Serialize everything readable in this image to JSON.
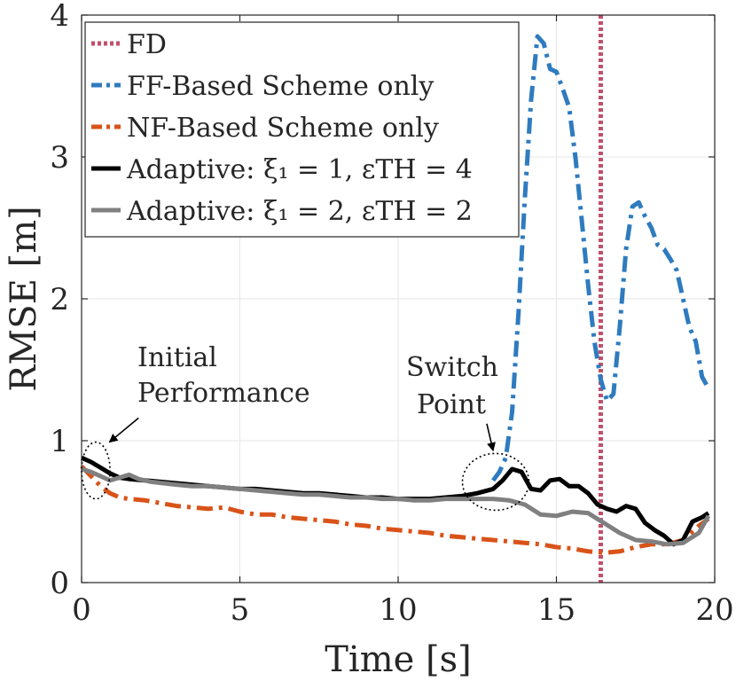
{
  "chart_data": {
    "type": "line",
    "xlabel": "Time [s]",
    "ylabel": "RMSE [m]",
    "xlim": [
      0,
      20
    ],
    "ylim": [
      0,
      4
    ],
    "xticks": [
      0,
      5,
      10,
      15,
      20
    ],
    "yticks": [
      0,
      1,
      2,
      3,
      4
    ],
    "grid": true,
    "legend_position": "top-left",
    "legend": [
      "FD",
      "FF-Based Scheme only",
      "NF-Based Scheme only",
      "Adaptive: ξ₁ = 1, εTH = 4",
      "Adaptive: ξ₁ = 2, εTH = 2"
    ],
    "vlines": [
      {
        "name": "FD",
        "x": 16.4,
        "color": "#c0506a",
        "style": "dotted"
      }
    ],
    "series": [
      {
        "name": "FF-Based Scheme only",
        "color": "#2f7bbf",
        "style": "dashdot",
        "x": [
          13.0,
          13.2,
          13.4,
          13.6,
          13.8,
          14.0,
          14.2,
          14.4,
          14.6,
          14.8,
          15.0,
          15.2,
          15.4,
          15.6,
          15.8,
          16.0,
          16.2,
          16.4,
          16.6,
          16.8,
          17.0,
          17.2,
          17.4,
          17.6,
          17.8,
          18.0,
          18.2,
          18.4,
          18.6,
          18.8,
          19.0,
          19.2,
          19.4,
          19.6,
          19.8
        ],
        "y": [
          0.72,
          0.78,
          0.88,
          1.2,
          1.9,
          2.7,
          3.4,
          3.85,
          3.8,
          3.62,
          3.6,
          3.48,
          3.35,
          3.0,
          2.55,
          2.1,
          1.7,
          1.43,
          1.28,
          1.33,
          1.8,
          2.35,
          2.65,
          2.68,
          2.58,
          2.5,
          2.38,
          2.35,
          2.28,
          2.2,
          2.0,
          1.8,
          1.7,
          1.45,
          1.37
        ]
      },
      {
        "name": "NF-Based Scheme only",
        "color": "#d95319",
        "style": "dashdot",
        "x": [
          0,
          0.3,
          0.6,
          0.9,
          1.2,
          1.5,
          2.0,
          2.5,
          3.0,
          3.5,
          4.0,
          4.5,
          5.0,
          5.5,
          6.0,
          6.5,
          7.0,
          7.5,
          8.0,
          8.5,
          9.0,
          9.5,
          10.0,
          10.5,
          11.0,
          11.5,
          12.0,
          12.5,
          13.0,
          13.5,
          14.0,
          14.5,
          15.0,
          15.5,
          16.0,
          16.5,
          17.0,
          17.5,
          18.0,
          18.5,
          19.0,
          19.5,
          19.8
        ],
        "y": [
          0.82,
          0.75,
          0.68,
          0.63,
          0.6,
          0.59,
          0.58,
          0.56,
          0.54,
          0.53,
          0.52,
          0.53,
          0.5,
          0.48,
          0.48,
          0.46,
          0.45,
          0.44,
          0.43,
          0.41,
          0.4,
          0.38,
          0.37,
          0.36,
          0.35,
          0.33,
          0.32,
          0.31,
          0.3,
          0.29,
          0.28,
          0.27,
          0.25,
          0.24,
          0.22,
          0.21,
          0.22,
          0.25,
          0.27,
          0.27,
          0.3,
          0.4,
          0.45
        ]
      },
      {
        "name": "Adaptive: ξ₁ = 1, εTH = 4",
        "color": "#000000",
        "style": "solid",
        "x": [
          0,
          0.3,
          0.6,
          0.9,
          1.2,
          1.5,
          2.0,
          2.5,
          3.0,
          3.5,
          4.0,
          4.5,
          5.0,
          5.5,
          6.0,
          6.5,
          7.0,
          7.5,
          8.0,
          8.5,
          9.0,
          9.5,
          10.0,
          10.5,
          11.0,
          11.5,
          12.0,
          12.5,
          13.0,
          13.3,
          13.6,
          13.9,
          14.2,
          14.5,
          14.8,
          15.1,
          15.4,
          15.7,
          16.0,
          16.3,
          16.6,
          16.9,
          17.2,
          17.5,
          17.8,
          18.1,
          18.4,
          18.7,
          19.0,
          19.3,
          19.6,
          19.8
        ],
        "y": [
          0.88,
          0.85,
          0.81,
          0.77,
          0.74,
          0.73,
          0.72,
          0.71,
          0.7,
          0.69,
          0.68,
          0.67,
          0.66,
          0.66,
          0.65,
          0.64,
          0.63,
          0.63,
          0.62,
          0.61,
          0.6,
          0.6,
          0.59,
          0.59,
          0.59,
          0.6,
          0.61,
          0.63,
          0.66,
          0.72,
          0.8,
          0.78,
          0.66,
          0.65,
          0.72,
          0.73,
          0.68,
          0.68,
          0.63,
          0.55,
          0.52,
          0.5,
          0.54,
          0.52,
          0.42,
          0.37,
          0.33,
          0.27,
          0.3,
          0.43,
          0.46,
          0.49
        ]
      },
      {
        "name": "Adaptive: ξ₁ = 2, εTH = 2",
        "color": "#808080",
        "style": "solid",
        "x": [
          0,
          0.3,
          0.6,
          0.9,
          1.2,
          1.5,
          1.8,
          2.2,
          2.6,
          3.0,
          3.5,
          4.0,
          4.5,
          5.0,
          5.5,
          6.0,
          6.5,
          7.0,
          7.5,
          8.0,
          8.5,
          9.0,
          9.5,
          10.0,
          10.5,
          11.0,
          11.5,
          12.0,
          12.5,
          13.0,
          13.5,
          14.0,
          14.5,
          15.0,
          15.5,
          16.0,
          16.5,
          17.0,
          17.5,
          18.0,
          18.5,
          19.0,
          19.5,
          19.8
        ],
        "y": [
          0.8,
          0.78,
          0.75,
          0.72,
          0.74,
          0.76,
          0.73,
          0.71,
          0.7,
          0.69,
          0.68,
          0.68,
          0.67,
          0.66,
          0.65,
          0.64,
          0.63,
          0.62,
          0.62,
          0.61,
          0.6,
          0.6,
          0.59,
          0.59,
          0.58,
          0.58,
          0.59,
          0.59,
          0.59,
          0.59,
          0.58,
          0.55,
          0.48,
          0.47,
          0.5,
          0.49,
          0.42,
          0.35,
          0.3,
          0.29,
          0.27,
          0.28,
          0.35,
          0.47
        ]
      }
    ],
    "annotations": [
      {
        "name": "initial-performance",
        "lines": [
          "Initial",
          "Performance"
        ],
        "ellipse": {
          "cx": 0.45,
          "cy": 0.79,
          "rx": 0.45,
          "ry": 0.2
        },
        "arrow_from": {
          "x": 1.8,
          "y": 1.16
        },
        "arrow_to": {
          "x": 0.88,
          "y": 0.99
        }
      },
      {
        "name": "switch-point",
        "lines": [
          "Switch",
          "Point"
        ],
        "ellipse": {
          "cx": 13.08,
          "cy": 0.71,
          "rx": 1.05,
          "ry": 0.2
        },
        "arrow_from": {
          "x": 12.8,
          "y": 1.12
        },
        "arrow_to": {
          "x": 13.0,
          "y": 0.93
        }
      }
    ]
  }
}
